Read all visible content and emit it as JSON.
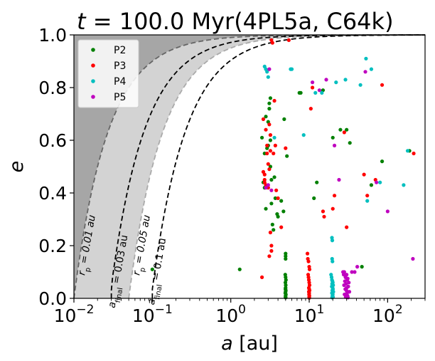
{
  "chart_data": {
    "type": "scatter",
    "title": "t = 100.0 Myr(4PL5a, C64k)",
    "title_parts": {
      "t": "t",
      "eq": " = 100.0 Myr(4PL5a, C64k)"
    },
    "xlabel": {
      "var": "a",
      "unit": " [au]"
    },
    "ylabel": "e",
    "xscale": "log",
    "xlim": [
      0.01,
      300
    ],
    "ylim": [
      0.0,
      1.0
    ],
    "x_ticks": [
      {
        "value": 0.01,
        "base": "10",
        "exp": "−2"
      },
      {
        "value": 0.1,
        "base": "10",
        "exp": "−1"
      },
      {
        "value": 1,
        "base": "10",
        "exp": "0"
      },
      {
        "value": 10,
        "base": "10",
        "exp": "1"
      },
      {
        "value": 100,
        "base": "10",
        "exp": "2"
      }
    ],
    "y_ticks": [
      {
        "value": 0.0,
        "label": "0.0"
      },
      {
        "value": 0.2,
        "label": "0.2"
      },
      {
        "value": 0.4,
        "label": "0.4"
      },
      {
        "value": 0.6,
        "label": "0.6"
      },
      {
        "value": 0.8,
        "label": "0.8"
      },
      {
        "value": 1.0,
        "label": "1.0"
      }
    ],
    "legend_position": "top-left",
    "curves": [
      {
        "name": "rp_0.01",
        "rp": 0.01,
        "style": "dashed",
        "color": "#666666",
        "label_main": "r",
        "label_sub": "p",
        "label_rest": " = 0.01 au",
        "label_at": {
          "a": 0.016,
          "e": 0.2
        }
      },
      {
        "name": "rp_0.05",
        "rp": 0.05,
        "style": "dashed",
        "color": "#aaaaaa",
        "label_main": "r",
        "label_sub": "p",
        "label_rest": " = 0.05 au",
        "label_at": {
          "a": 0.08,
          "e": 0.2
        }
      },
      {
        "name": "afinal_0.03",
        "rp": 0.015,
        "style": "dashed",
        "color": "#000000",
        "emin": 0.03,
        "label_main": "a",
        "label_sub": "final",
        "label_rest": " = 0.03 au",
        "label_at": {
          "a": 0.04,
          "e": 0.1
        }
      },
      {
        "name": "afinal_0.1",
        "rp": 0.05,
        "style": "dashed",
        "color": "#000000",
        "emin": 0.0,
        "label_main": "a",
        "label_sub": "final",
        "label_rest": " = 0.1 au",
        "label_at": {
          "a": 0.125,
          "e": 0.1
        }
      }
    ],
    "series": [
      {
        "name": "P2",
        "color": "#008000",
        "points": [
          [
            0.1,
            0.11
          ],
          [
            1.3,
            0.11
          ],
          [
            2.5,
            0.61
          ],
          [
            2.6,
            0.44
          ],
          [
            2.7,
            0.42
          ],
          [
            2.7,
            0.55
          ],
          [
            2.8,
            0.69
          ],
          [
            2.8,
            0.34
          ],
          [
            2.9,
            0.57
          ],
          [
            3.0,
            0.58
          ],
          [
            3.0,
            0.67
          ],
          [
            3.1,
            0.72
          ],
          [
            3.1,
            0.74
          ],
          [
            3.2,
            0.76
          ],
          [
            3.2,
            0.6
          ],
          [
            3.2,
            0.5
          ],
          [
            3.3,
            0.45
          ],
          [
            3.3,
            0.36
          ],
          [
            3.4,
            0.28
          ],
          [
            3.5,
            0.26
          ],
          [
            3.6,
            0.46
          ],
          [
            3.7,
            0.38
          ],
          [
            3.9,
            0.32
          ],
          [
            4.0,
            0.31
          ],
          [
            4.4,
            0.37
          ],
          [
            4.7,
            0.33
          ],
          [
            4.8,
            0.68
          ],
          [
            5.2,
            0.54
          ],
          [
            5.0,
            0.17
          ],
          [
            5.0,
            0.16
          ],
          [
            5.0,
            0.15
          ],
          [
            4.95,
            0.09
          ],
          [
            5.0,
            0.08
          ],
          [
            5.05,
            0.07
          ],
          [
            4.97,
            0.06
          ],
          [
            5.02,
            0.05
          ],
          [
            5.0,
            0.04
          ],
          [
            4.98,
            0.035
          ],
          [
            5.03,
            0.03
          ],
          [
            5.0,
            0.025
          ],
          [
            4.96,
            0.02
          ],
          [
            5.04,
            0.015
          ],
          [
            5.0,
            0.01
          ],
          [
            4.99,
            0.005
          ],
          [
            5.01,
            0.003
          ],
          [
            7.5,
            0.78
          ],
          [
            7.8,
            0.78
          ],
          [
            11.5,
            0.38
          ],
          [
            12.5,
            0.44
          ],
          [
            15,
            0.79
          ],
          [
            20,
            0.61
          ],
          [
            25,
            0.64
          ],
          [
            30,
            0.64
          ],
          [
            33,
            0.59
          ],
          [
            47,
            0.12
          ],
          [
            62,
            0.43
          ],
          [
            85,
            0.52
          ],
          [
            190,
            0.56
          ]
        ]
      },
      {
        "name": "P3",
        "color": "#ff0000",
        "points": [
          [
            2.5,
            0.08
          ],
          [
            2.6,
            0.68
          ],
          [
            2.6,
            0.48
          ],
          [
            2.7,
            0.47
          ],
          [
            2.7,
            0.45
          ],
          [
            2.7,
            0.44
          ],
          [
            2.8,
            0.43
          ],
          [
            2.8,
            0.64
          ],
          [
            2.9,
            0.58
          ],
          [
            2.9,
            0.55
          ],
          [
            3.0,
            0.51
          ],
          [
            3.0,
            0.42
          ],
          [
            3.1,
            0.49
          ],
          [
            3.1,
            0.66
          ],
          [
            3.2,
            0.62
          ],
          [
            3.2,
            0.56
          ],
          [
            3.3,
            0.18
          ],
          [
            3.3,
            0.2
          ],
          [
            3.1,
            0.16
          ],
          [
            3.2,
            0.25
          ],
          [
            3.3,
            0.98
          ],
          [
            3.4,
            0.97
          ],
          [
            3.5,
            0.55
          ],
          [
            3.6,
            0.75
          ],
          [
            3.7,
            0.58
          ],
          [
            3.8,
            0.41
          ],
          [
            4.0,
            0.38
          ],
          [
            4.4,
            0.27
          ],
          [
            5.0,
            0.57
          ],
          [
            5.5,
            0.98
          ],
          [
            9.5,
            0.17
          ],
          [
            9.6,
            0.15
          ],
          [
            9.8,
            0.14
          ],
          [
            10.0,
            0.12
          ],
          [
            10.1,
            0.11
          ],
          [
            9.7,
            0.09
          ],
          [
            9.8,
            0.08
          ],
          [
            9.9,
            0.07
          ],
          [
            10.0,
            0.06
          ],
          [
            10.1,
            0.05
          ],
          [
            9.9,
            0.04
          ],
          [
            10.0,
            0.035
          ],
          [
            10.1,
            0.03
          ],
          [
            9.9,
            0.025
          ],
          [
            10.0,
            0.02
          ],
          [
            9.95,
            0.015
          ],
          [
            10.05,
            0.01
          ],
          [
            10.0,
            0.005
          ],
          [
            10.02,
            0.002
          ],
          [
            10.5,
            0.72
          ],
          [
            11,
            0.8
          ],
          [
            15,
            0.33
          ],
          [
            15.5,
            0.31
          ],
          [
            20,
            0.34
          ],
          [
            21,
            0.39
          ],
          [
            28,
            0.63
          ],
          [
            30,
            0.27
          ],
          [
            50,
            0.47
          ],
          [
            55,
            0.39
          ],
          [
            70,
            0.45
          ],
          [
            85,
            0.81
          ],
          [
            215,
            0.55
          ]
        ]
      },
      {
        "name": "P4",
        "color": "#00bfbf",
        "points": [
          [
            2.7,
            0.88
          ],
          [
            2.8,
            0.87
          ],
          [
            2.9,
            0.86
          ],
          [
            3.0,
            0.84
          ],
          [
            3.6,
            0.61
          ],
          [
            5.8,
            0.87
          ],
          [
            6.0,
            0.87
          ],
          [
            8.5,
            0.62
          ],
          [
            12,
            0.78
          ],
          [
            14.5,
            0.78
          ],
          [
            19.5,
            0.23
          ],
          [
            19.7,
            0.22
          ],
          [
            19.6,
            0.15
          ],
          [
            19.8,
            0.14
          ],
          [
            19.0,
            0.09
          ],
          [
            19.3,
            0.08
          ],
          [
            19.5,
            0.07
          ],
          [
            19.8,
            0.065
          ],
          [
            20.0,
            0.06
          ],
          [
            19.6,
            0.055
          ],
          [
            20.2,
            0.05
          ],
          [
            19.4,
            0.045
          ],
          [
            19.9,
            0.04
          ],
          [
            20.1,
            0.035
          ],
          [
            19.7,
            0.03
          ],
          [
            20.3,
            0.025
          ],
          [
            19.5,
            0.02
          ],
          [
            20.0,
            0.015
          ],
          [
            19.8,
            0.01
          ],
          [
            20.1,
            0.005
          ],
          [
            19.6,
            0.003
          ],
          [
            22,
            0.82
          ],
          [
            29,
            0.83
          ],
          [
            45,
            0.81
          ],
          [
            53,
            0.91
          ],
          [
            55,
            0.37
          ],
          [
            62,
            0.87
          ],
          [
            80,
            0.44
          ],
          [
            160,
            0.43
          ],
          [
            180,
            0.56
          ]
        ]
      },
      {
        "name": "P5",
        "color": "#bf00bf",
        "points": [
          [
            2.8,
            0.42
          ],
          [
            3.0,
            0.43
          ],
          [
            3.3,
            0.41
          ],
          [
            3.1,
            0.87
          ],
          [
            11,
            0.82
          ],
          [
            13.5,
            0.79
          ],
          [
            16.5,
            0.83
          ],
          [
            27,
            0.1
          ],
          [
            28,
            0.1
          ],
          [
            27.5,
            0.09
          ],
          [
            30,
            0.09
          ],
          [
            29,
            0.08
          ],
          [
            31,
            0.075
          ],
          [
            30.5,
            0.07
          ],
          [
            28.5,
            0.065
          ],
          [
            32,
            0.06
          ],
          [
            29.5,
            0.055
          ],
          [
            27.8,
            0.05
          ],
          [
            31.5,
            0.045
          ],
          [
            30.0,
            0.04
          ],
          [
            28.8,
            0.035
          ],
          [
            29.8,
            0.03
          ],
          [
            32.5,
            0.025
          ],
          [
            30.3,
            0.02
          ],
          [
            28.2,
            0.015
          ],
          [
            30.8,
            0.01
          ],
          [
            29.2,
            0.005
          ],
          [
            31.2,
            0.003
          ],
          [
            21,
            0.58
          ],
          [
            24,
            0.45
          ],
          [
            35,
            0.1
          ],
          [
            38,
            0.1
          ],
          [
            41,
            0.12
          ],
          [
            52,
            0.86
          ],
          [
            72,
            0.44
          ],
          [
            100,
            0.33
          ],
          [
            210,
            0.15
          ]
        ]
      }
    ]
  }
}
